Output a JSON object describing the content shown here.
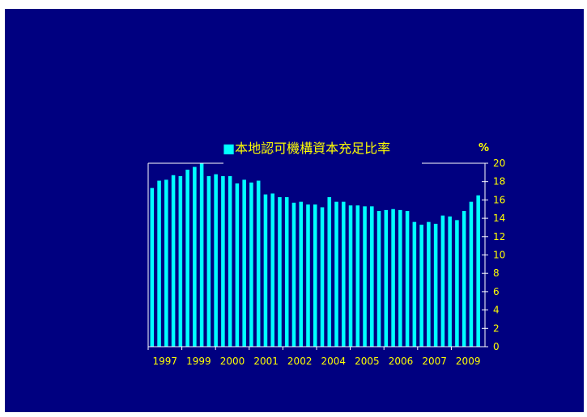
{
  "colors": {
    "background": "#000080",
    "bar": "#00ffff",
    "text": "#ffff00",
    "axis": "#ffffff"
  },
  "chart_data": {
    "type": "bar",
    "title": "本地認可機構資本充足比率",
    "legend_marker": "■",
    "y_unit": "%",
    "ylim": [
      0,
      20
    ],
    "y_ticks": [
      0,
      2,
      4,
      6,
      8,
      10,
      12,
      14,
      16,
      18,
      20
    ],
    "y_axis_side": "right",
    "grid": false,
    "x_tick_labels": [
      "1997",
      "1999",
      "2000",
      "2001",
      "2002",
      "2004",
      "2005",
      "2006",
      "2007",
      "2009"
    ],
    "values": [
      17.3,
      18.1,
      18.2,
      18.7,
      18.6,
      19.3,
      19.6,
      20.0,
      18.6,
      18.8,
      18.6,
      18.6,
      17.8,
      18.2,
      17.9,
      18.1,
      16.6,
      16.7,
      16.3,
      16.3,
      15.7,
      15.8,
      15.5,
      15.5,
      15.2,
      16.3,
      15.8,
      15.8,
      15.4,
      15.4,
      15.3,
      15.3,
      14.8,
      14.9,
      15.0,
      14.9,
      14.8,
      13.6,
      13.3,
      13.6,
      13.4,
      14.3,
      14.2,
      13.8,
      14.8,
      15.8,
      16.5
    ]
  }
}
